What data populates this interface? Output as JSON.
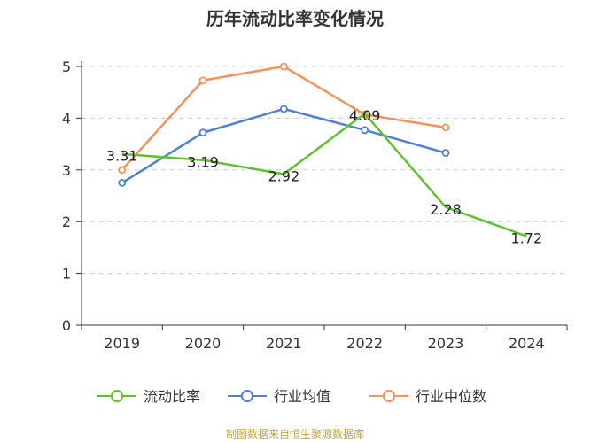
{
  "chart_data": {
    "type": "line",
    "title": "历年流动比率变化情况",
    "xlabel": "",
    "ylabel": "",
    "categories": [
      "2019",
      "2020",
      "2021",
      "2022",
      "2023",
      "2024"
    ],
    "ylim": [
      0,
      5
    ],
    "yticks": [
      0,
      1,
      2,
      3,
      4,
      5
    ],
    "grid": "horizontal-dashed",
    "legend_position": "bottom",
    "series": [
      {
        "name": "流动比率",
        "color": "#5fc22f",
        "values": [
          3.31,
          3.19,
          2.92,
          4.09,
          2.28,
          1.72
        ],
        "labels": [
          "3.31",
          "3.19",
          "2.92",
          "4.09",
          "2.28",
          "1.72"
        ]
      },
      {
        "name": "行业均值",
        "color": "#4f7fdc",
        "values": [
          2.75,
          3.72,
          4.18,
          3.77,
          3.33,
          null
        ]
      },
      {
        "name": "行业中位数",
        "color": "#f5925a",
        "values": [
          3.0,
          4.73,
          5.0,
          4.07,
          3.82,
          null
        ]
      }
    ]
  },
  "source": "制图数据来自恒生聚源数据库"
}
